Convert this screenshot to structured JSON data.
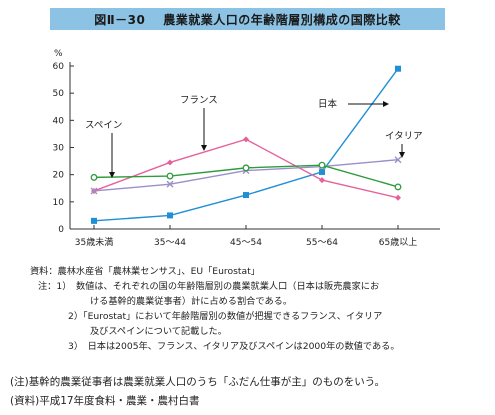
{
  "figure": {
    "number": "図Ⅱ－30",
    "title": "農業就業人口の年齢階層別構成の国際比較"
  },
  "chart_data": {
    "type": "line",
    "ylabel": "%",
    "ylim": [
      0,
      60
    ],
    "yticks": [
      0,
      10,
      20,
      30,
      40,
      50,
      60
    ],
    "categories": [
      "35歳未満",
      "35～44",
      "45～54",
      "55～64",
      "65歳以上"
    ],
    "grid": false,
    "series": [
      {
        "name": "日本",
        "color": "#1f8fd6",
        "marker": "square-filled",
        "values": [
          3,
          5,
          12.5,
          21,
          59
        ]
      },
      {
        "name": "フランス",
        "color": "#e8609b",
        "marker": "diamond",
        "values": [
          14,
          24.5,
          33,
          18,
          11.5
        ]
      },
      {
        "name": "イタリア",
        "color": "#9b8fc9",
        "marker": "cross",
        "values": [
          14,
          16.5,
          21.5,
          23,
          25.5
        ]
      },
      {
        "name": "スペイン",
        "color": "#2e9b3c",
        "marker": "circle-open",
        "values": [
          19,
          19.5,
          22.5,
          23.5,
          15.5
        ]
      }
    ]
  },
  "notes": {
    "source": "資料：農林水産省「農林業センサス」、EU「Eurostat」",
    "n1a": "注：1）　数値は、それぞれの国の年齢階層別の農業就業人口（日本は販売農家にお",
    "n1b": "ける基幹的農業従事者）計に占める割合である。",
    "n2a": "2）「Eurostat」において年齢階層別の数値が把握できるフランス、イタリア",
    "n2b": "及びスペインについて記載した。",
    "n3": "3）　日本は2005年、フランス、イタリア及びスペインは2000年の数値である。"
  },
  "footer": {
    "note": "(注)基幹的農業従事者は農業就業人口のうち「ふだん仕事が主」のものをいう。",
    "source": "(資料)平成17年度食料・農業・農村白書"
  }
}
